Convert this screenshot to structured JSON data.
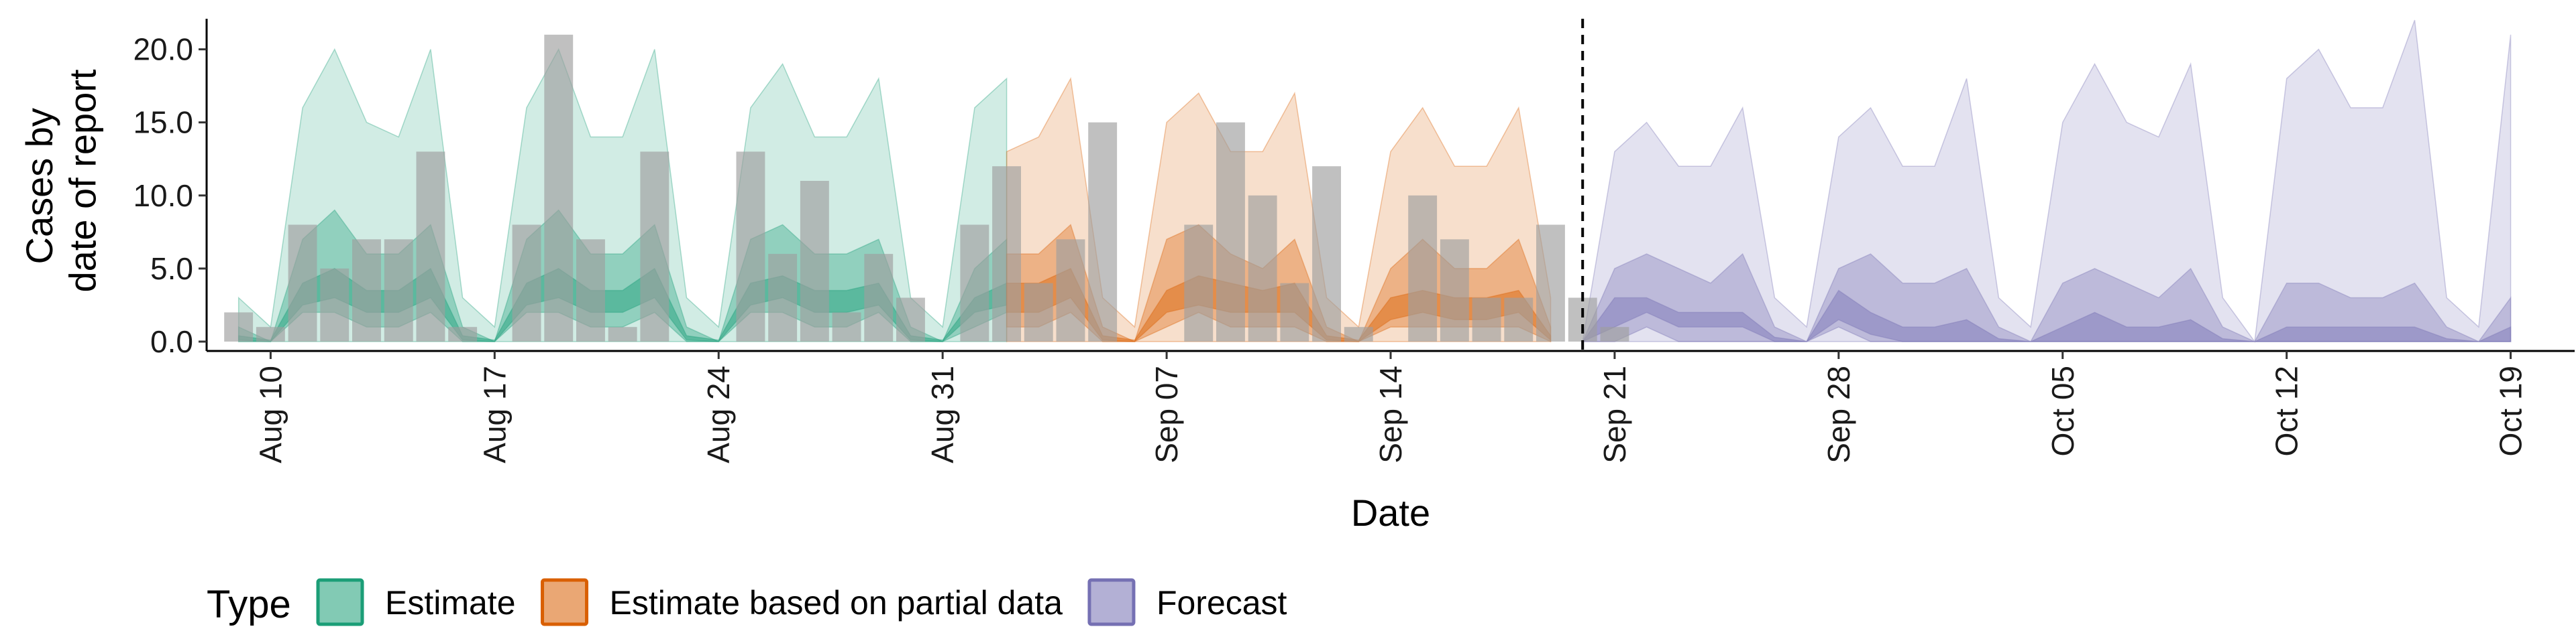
{
  "chart_data": {
    "type": "area",
    "xlabel": "Date",
    "ylabel_lines": [
      "Cases by",
      "date of report"
    ],
    "ylim": [
      0,
      22
    ],
    "yticks": [
      0,
      5,
      10,
      15,
      20
    ],
    "ytick_labels": [
      "0.0",
      "5.0",
      "10.0",
      "15.0",
      "20.0"
    ],
    "x_start": "2021-08-08",
    "x_end": "2021-10-21",
    "xticks": [
      "2021-08-10",
      "2021-08-17",
      "2021-08-24",
      "2021-08-31",
      "2021-09-07",
      "2021-09-14",
      "2021-09-21",
      "2021-09-28",
      "2021-10-05",
      "2021-10-12",
      "2021-10-19"
    ],
    "xtick_labels": [
      "Aug 10",
      "Aug 17",
      "Aug 24",
      "Aug 31",
      "Sep 07",
      "Sep 14",
      "Sep 21",
      "Sep 28",
      "Oct 05",
      "Oct 12",
      "Oct 19"
    ],
    "vline_date": "2021-09-20",
    "grid": false,
    "legend_position": "bottom-left",
    "legend_title": "Type",
    "colors": {
      "Estimate": "#1b9e77",
      "Estimate based on partial data": "#d95f02",
      "Forecast": "#7570b3",
      "bars": "#9e9e9e"
    },
    "series": [
      {
        "name": "Estimate",
        "start": "2021-08-09",
        "upper90": [
          3,
          1,
          16,
          20,
          15,
          14,
          20,
          3,
          1,
          16,
          20,
          14,
          14,
          20,
          3,
          1,
          16,
          19,
          14,
          14,
          18,
          3,
          1,
          16,
          18
        ],
        "lower90": [
          0,
          0,
          0,
          0,
          0,
          0,
          0,
          0,
          0,
          0,
          0,
          0,
          0,
          0,
          0,
          0,
          0,
          0,
          0,
          0,
          0,
          0,
          0,
          0,
          0
        ],
        "upper50": [
          1,
          0,
          7,
          9,
          6,
          6,
          8,
          1,
          0,
          7,
          9,
          6,
          6,
          8,
          1,
          0,
          7,
          8,
          6,
          6,
          7,
          1,
          0,
          5,
          7
        ],
        "lower50": [
          0,
          0,
          2,
          2,
          1,
          1,
          2,
          0,
          0,
          2,
          2,
          1,
          1,
          2,
          0,
          0,
          2,
          2,
          1,
          1,
          2,
          0,
          0,
          1,
          2
        ],
        "upper20": [
          0.4,
          0.1,
          4,
          5,
          3.5,
          3.5,
          5,
          0.4,
          0.1,
          4,
          5,
          3.5,
          3.5,
          5,
          0.4,
          0.1,
          4,
          4.5,
          3.5,
          3.5,
          4,
          0.4,
          0.1,
          3,
          4
        ],
        "lower20": [
          0.1,
          0,
          2.5,
          3,
          2,
          2,
          3,
          0.1,
          0,
          2.5,
          3,
          2,
          2,
          3,
          0.1,
          0,
          2.5,
          3,
          2,
          2,
          2.5,
          0.1,
          0,
          2,
          2.5
        ]
      },
      {
        "name": "Estimate based on partial data",
        "start": "2021-09-02",
        "upper90": [
          13,
          14,
          18,
          3,
          1,
          15,
          17,
          13,
          13,
          17,
          3,
          1,
          13,
          16,
          12,
          12,
          16,
          3
        ],
        "lower90": [
          0,
          0,
          0,
          0,
          0,
          0,
          0,
          0,
          0,
          0,
          0,
          0,
          0,
          0,
          0,
          0,
          0,
          0
        ],
        "upper50": [
          6,
          6,
          8,
          1,
          0,
          7,
          8,
          6,
          5,
          7,
          1,
          0,
          5,
          7,
          5,
          5,
          7,
          1
        ],
        "lower50": [
          1,
          1,
          2,
          0,
          0,
          1,
          2,
          1,
          1,
          1,
          0,
          0,
          1,
          1,
          1,
          1,
          1,
          0
        ],
        "upper20": [
          4,
          4,
          5,
          0.4,
          0.1,
          3.5,
          4.5,
          4,
          3.5,
          4,
          0.4,
          0.1,
          3,
          3.5,
          3,
          3,
          3.5,
          0.4
        ],
        "lower20": [
          2,
          2,
          3,
          0.1,
          0,
          2,
          2.5,
          2,
          2,
          2,
          0.1,
          0,
          1.5,
          2,
          1.5,
          1.5,
          2,
          0.1
        ]
      },
      {
        "name": "Forecast",
        "start": "2021-09-20",
        "upper90": [
          0,
          13,
          15,
          12,
          12,
          16,
          3,
          1,
          14,
          16,
          12,
          12,
          18,
          3,
          1,
          15,
          19,
          15,
          14,
          19,
          3,
          0,
          18,
          20,
          16,
          16,
          22,
          3,
          1,
          21
        ],
        "lower90": [
          0,
          0,
          0,
          0,
          0,
          0,
          0,
          0,
          0,
          0,
          0,
          0,
          0,
          0,
          0,
          0,
          0,
          0,
          0,
          0,
          0,
          0,
          0,
          0,
          0,
          0,
          0,
          0,
          0,
          0
        ],
        "upper50": [
          0,
          5,
          6,
          5,
          4,
          6,
          1,
          0,
          5,
          6,
          4,
          4,
          5,
          1,
          0,
          4,
          5,
          4,
          3,
          5,
          1,
          0,
          4,
          4,
          3,
          3,
          4,
          1,
          0,
          3
        ],
        "lower50": [
          0,
          0,
          1,
          0,
          0,
          0,
          0,
          0,
          1,
          0,
          0,
          0,
          0,
          0,
          0,
          0,
          0,
          0,
          0,
          0,
          0,
          0,
          0,
          0,
          0,
          0,
          0,
          0,
          0,
          0
        ],
        "upper20": [
          0,
          3,
          3,
          2,
          2,
          2,
          0.3,
          0,
          3.5,
          2,
          1,
          1,
          1.5,
          0.2,
          0,
          1,
          2,
          1,
          1,
          1.5,
          0.2,
          0,
          1,
          1,
          1,
          1,
          1,
          0.2,
          0,
          1
        ],
        "lower20": [
          0,
          1,
          2,
          1,
          1,
          1,
          0,
          0,
          1.5,
          0.5,
          0,
          0,
          0,
          0,
          0,
          0,
          0,
          0,
          0,
          0,
          0,
          0,
          0,
          0,
          0,
          0,
          0,
          0,
          0,
          0
        ]
      }
    ],
    "bars": {
      "start": "2021-08-09",
      "values": [
        2,
        1,
        8,
        5,
        7,
        7,
        13,
        1,
        0,
        8,
        21,
        7,
        1,
        13,
        0,
        0,
        13,
        6,
        11,
        2,
        6,
        3,
        0,
        8,
        12,
        4,
        7,
        15,
        0,
        0,
        8,
        15,
        10,
        4,
        12,
        1,
        0,
        10,
        7,
        3,
        3,
        8,
        3,
        1
      ]
    }
  }
}
